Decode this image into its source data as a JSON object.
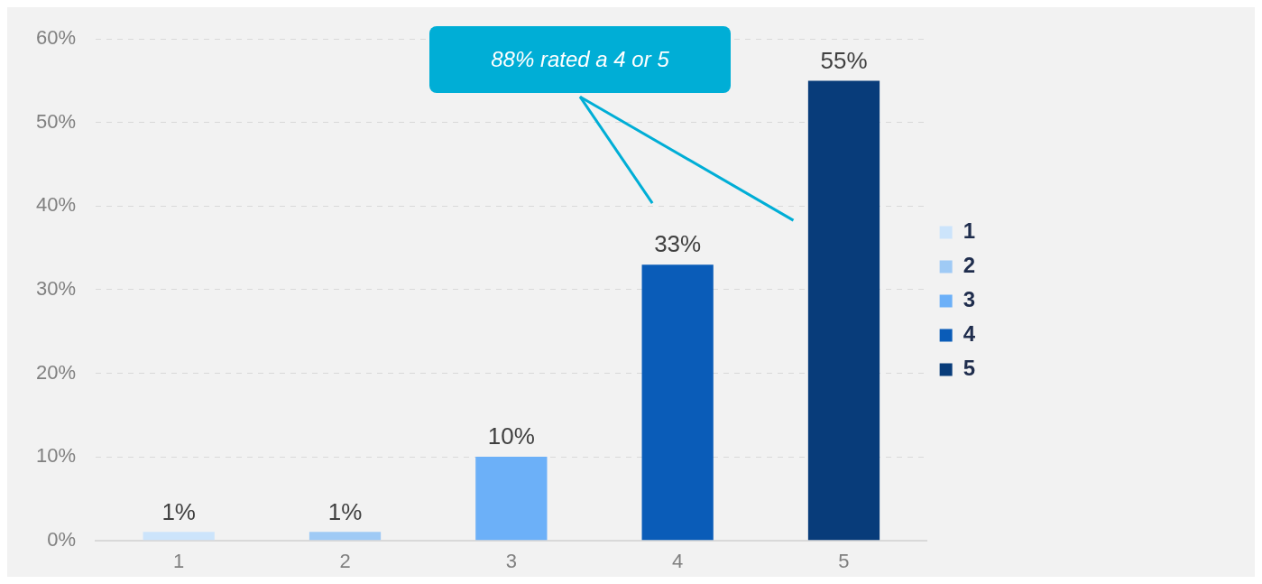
{
  "chart_data": {
    "type": "bar",
    "categories": [
      "1",
      "2",
      "3",
      "4",
      "5"
    ],
    "series": [
      {
        "name": "1",
        "color": "#cce4fb",
        "values": [
          1,
          null,
          null,
          null,
          null
        ]
      },
      {
        "name": "2",
        "color": "#9fcaf5",
        "values": [
          null,
          1,
          null,
          null,
          null
        ]
      },
      {
        "name": "3",
        "color": "#6cb0f8",
        "values": [
          null,
          null,
          10,
          null,
          null
        ]
      },
      {
        "name": "4",
        "color": "#0a5cb8",
        "values": [
          null,
          null,
          null,
          33,
          null
        ]
      },
      {
        "name": "5",
        "color": "#083c7a",
        "values": [
          null,
          null,
          null,
          null,
          55
        ]
      }
    ],
    "value_labels": [
      "1%",
      "1%",
      "10%",
      "33%",
      "55%"
    ],
    "ylim": [
      0,
      60
    ],
    "yticks": [
      {
        "value": 0,
        "label": "0%"
      },
      {
        "value": 10,
        "label": "10%"
      },
      {
        "value": 20,
        "label": "20%"
      },
      {
        "value": 30,
        "label": "30%"
      },
      {
        "value": 40,
        "label": "40%"
      },
      {
        "value": 50,
        "label": "50%"
      },
      {
        "value": 60,
        "label": "60%"
      }
    ],
    "grid": "y",
    "legend": "right",
    "annotations": [
      "88% rated a 4 or 5"
    ]
  }
}
